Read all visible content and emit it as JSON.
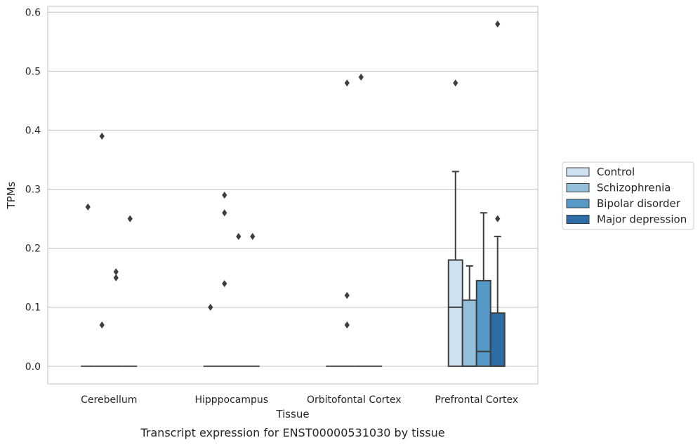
{
  "chart_data": {
    "type": "box",
    "xlabel": "Tissue",
    "ylabel": "TPMs",
    "caption": "Transcript expression for ENST00000531030 by tissue",
    "ylim": [
      -0.03,
      0.61
    ],
    "y_ticks": [
      0.0,
      0.1,
      0.2,
      0.3,
      0.4,
      0.5,
      0.6
    ],
    "y_tick_labels": [
      "0.0",
      "0.1",
      "0.2",
      "0.3",
      "0.4",
      "0.5",
      "0.6"
    ],
    "grid": "horizontal",
    "legend_position": "right",
    "categories": [
      "Cerebellum",
      "Hipppocampus",
      "Orbitofontal Cortex",
      "Prefrontal Cortex"
    ],
    "series": [
      {
        "name": "Control",
        "color": "#cfe0f0",
        "boxes": [
          {
            "q1": 0,
            "median": 0,
            "q3": 0,
            "whisker_low": 0,
            "whisker_high": 0,
            "outliers": [
              0.27
            ]
          },
          {
            "q1": 0,
            "median": 0,
            "q3": 0,
            "whisker_low": 0,
            "whisker_high": 0,
            "outliers": [
              0.1
            ]
          },
          {
            "q1": 0,
            "median": 0,
            "q3": 0,
            "whisker_low": 0,
            "whisker_high": 0,
            "outliers": []
          },
          {
            "q1": 0,
            "median": 0.1,
            "q3": 0.18,
            "whisker_low": 0,
            "whisker_high": 0.33,
            "outliers": [
              0.48
            ]
          }
        ]
      },
      {
        "name": "Schizophrenia",
        "color": "#93bfdb",
        "boxes": [
          {
            "q1": 0,
            "median": 0,
            "q3": 0,
            "whisker_low": 0,
            "whisker_high": 0,
            "outliers": [
              0.39,
              0.07
            ]
          },
          {
            "q1": 0,
            "median": 0,
            "q3": 0,
            "whisker_low": 0,
            "whisker_high": 0,
            "outliers": [
              0.29,
              0.26,
              0.14
            ]
          },
          {
            "q1": 0,
            "median": 0,
            "q3": 0,
            "whisker_low": 0,
            "whisker_high": 0,
            "outliers": [
              0.48,
              0.12,
              0.07
            ]
          },
          {
            "q1": 0,
            "median": 0,
            "q3": 0.112,
            "whisker_low": 0,
            "whisker_high": 0.17,
            "outliers": []
          }
        ]
      },
      {
        "name": "Bipolar disorder",
        "color": "#5499c7",
        "boxes": [
          {
            "q1": 0,
            "median": 0,
            "q3": 0,
            "whisker_low": 0,
            "whisker_high": 0,
            "outliers": [
              0.16,
              0.15
            ]
          },
          {
            "q1": 0,
            "median": 0,
            "q3": 0,
            "whisker_low": 0,
            "whisker_high": 0,
            "outliers": [
              0.22
            ]
          },
          {
            "q1": 0,
            "median": 0,
            "q3": 0,
            "whisker_low": 0,
            "whisker_high": 0,
            "outliers": [
              0.49
            ]
          },
          {
            "q1": 0,
            "median": 0.025,
            "q3": 0.145,
            "whisker_low": 0,
            "whisker_high": 0.26,
            "outliers": []
          }
        ]
      },
      {
        "name": "Major depression",
        "color": "#2d6ca4",
        "boxes": [
          {
            "q1": 0,
            "median": 0,
            "q3": 0,
            "whisker_low": 0,
            "whisker_high": 0,
            "outliers": [
              0.25
            ]
          },
          {
            "q1": 0,
            "median": 0,
            "q3": 0,
            "whisker_low": 0,
            "whisker_high": 0,
            "outliers": [
              0.22
            ]
          },
          {
            "q1": 0,
            "median": 0,
            "q3": 0,
            "whisker_low": 0,
            "whisker_high": 0,
            "outliers": []
          },
          {
            "q1": 0,
            "median": 0,
            "q3": 0.09,
            "whisker_low": 0,
            "whisker_high": 0.22,
            "outliers": [
              0.25,
              0.58
            ]
          }
        ]
      }
    ]
  }
}
